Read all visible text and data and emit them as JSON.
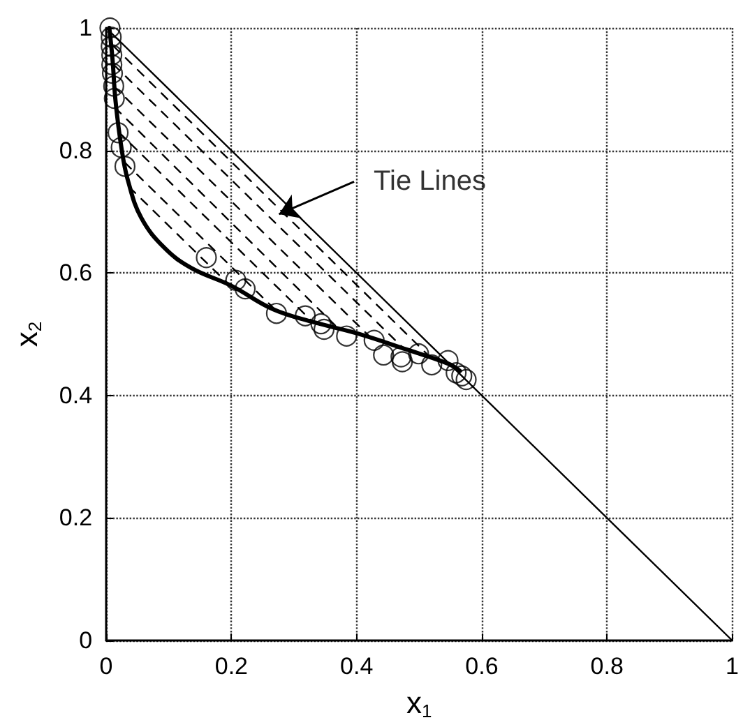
{
  "chart_data": {
    "type": "scatter",
    "xlabel": "x$_{1}$",
    "ylabel": "x$_{2}$",
    "xlim": [
      0,
      1
    ],
    "ylim": [
      0,
      1
    ],
    "xticks": [
      0,
      0.2,
      0.4,
      0.6,
      0.8,
      1
    ],
    "yticks": [
      0,
      0.2,
      0.4,
      0.6,
      0.8,
      1
    ],
    "grid": true,
    "annotations": [
      {
        "text": "Tie Lines",
        "x": 0.276,
        "y": 0.696
      }
    ],
    "series": [
      {
        "marker": "circle",
        "color": "#000000",
        "x": [
          0.006,
          0.008,
          0.008,
          0.009,
          0.009,
          0.01,
          0.012,
          0.013,
          0.019,
          0.024,
          0.03,
          0.16,
          0.207,
          0.222,
          0.272,
          0.318,
          0.343,
          0.348,
          0.384,
          0.428,
          0.443,
          0.471,
          0.473,
          0.499,
          0.52,
          0.546,
          0.559,
          0.568,
          0.575
        ],
        "values": [
          1.0,
          0.985,
          0.97,
          0.956,
          0.94,
          0.926,
          0.905,
          0.885,
          0.829,
          0.805,
          0.774,
          0.625,
          0.588,
          0.574,
          0.534,
          0.53,
          0.517,
          0.508,
          0.497,
          0.49,
          0.466,
          0.463,
          0.455,
          0.468,
          0.45,
          0.457,
          0.437,
          0.432,
          0.426
        ]
      },
      {
        "type": "line",
        "marker": "none",
        "line_style": "solid",
        "color": "#000000",
        "x": [
          0.005,
          0.01,
          0.015,
          0.025,
          0.035,
          0.056,
          0.093,
          0.136,
          0.2,
          0.266,
          0.33,
          0.402,
          0.48,
          0.546,
          0.565
        ],
        "values": [
          1.0,
          0.95,
          0.88,
          0.8,
          0.75,
          0.69,
          0.641,
          0.608,
          0.579,
          0.541,
          0.52,
          0.501,
          0.475,
          0.452,
          0.44
        ]
      },
      {
        "type": "line",
        "marker": "none",
        "line_style": "solid",
        "color": "#000000",
        "x": [
          0,
          1
        ],
        "values": [
          1,
          0
        ]
      },
      {
        "type": "line",
        "marker": "none",
        "line_style": "dashed",
        "color": "#000000",
        "x": [
          0.012,
          0.52
        ],
        "values": [
          0.97,
          0.46
        ]
      },
      {
        "type": "line",
        "marker": "none",
        "line_style": "dashed",
        "color": "#000000",
        "x": [
          0.012,
          0.476
        ],
        "values": [
          0.94,
          0.476
        ]
      },
      {
        "type": "line",
        "marker": "none",
        "line_style": "dashed",
        "color": "#000000",
        "x": [
          0.012,
          0.42
        ],
        "values": [
          0.905,
          0.497
        ]
      },
      {
        "type": "line",
        "marker": "none",
        "line_style": "dashed",
        "color": "#000000",
        "x": [
          0.014,
          0.37
        ],
        "values": [
          0.87,
          0.51
        ]
      },
      {
        "type": "line",
        "marker": "none",
        "line_style": "dashed",
        "color": "#000000",
        "x": [
          0.02,
          0.33
        ],
        "values": [
          0.83,
          0.52
        ]
      },
      {
        "type": "line",
        "marker": "none",
        "line_style": "dashed",
        "color": "#000000",
        "x": [
          0.03,
          0.27
        ],
        "values": [
          0.78,
          0.54
        ]
      },
      {
        "type": "line",
        "marker": "none",
        "line_style": "dashed",
        "color": "#000000",
        "x": [
          0.037,
          0.2
        ],
        "values": [
          0.74,
          0.577
        ]
      }
    ]
  }
}
